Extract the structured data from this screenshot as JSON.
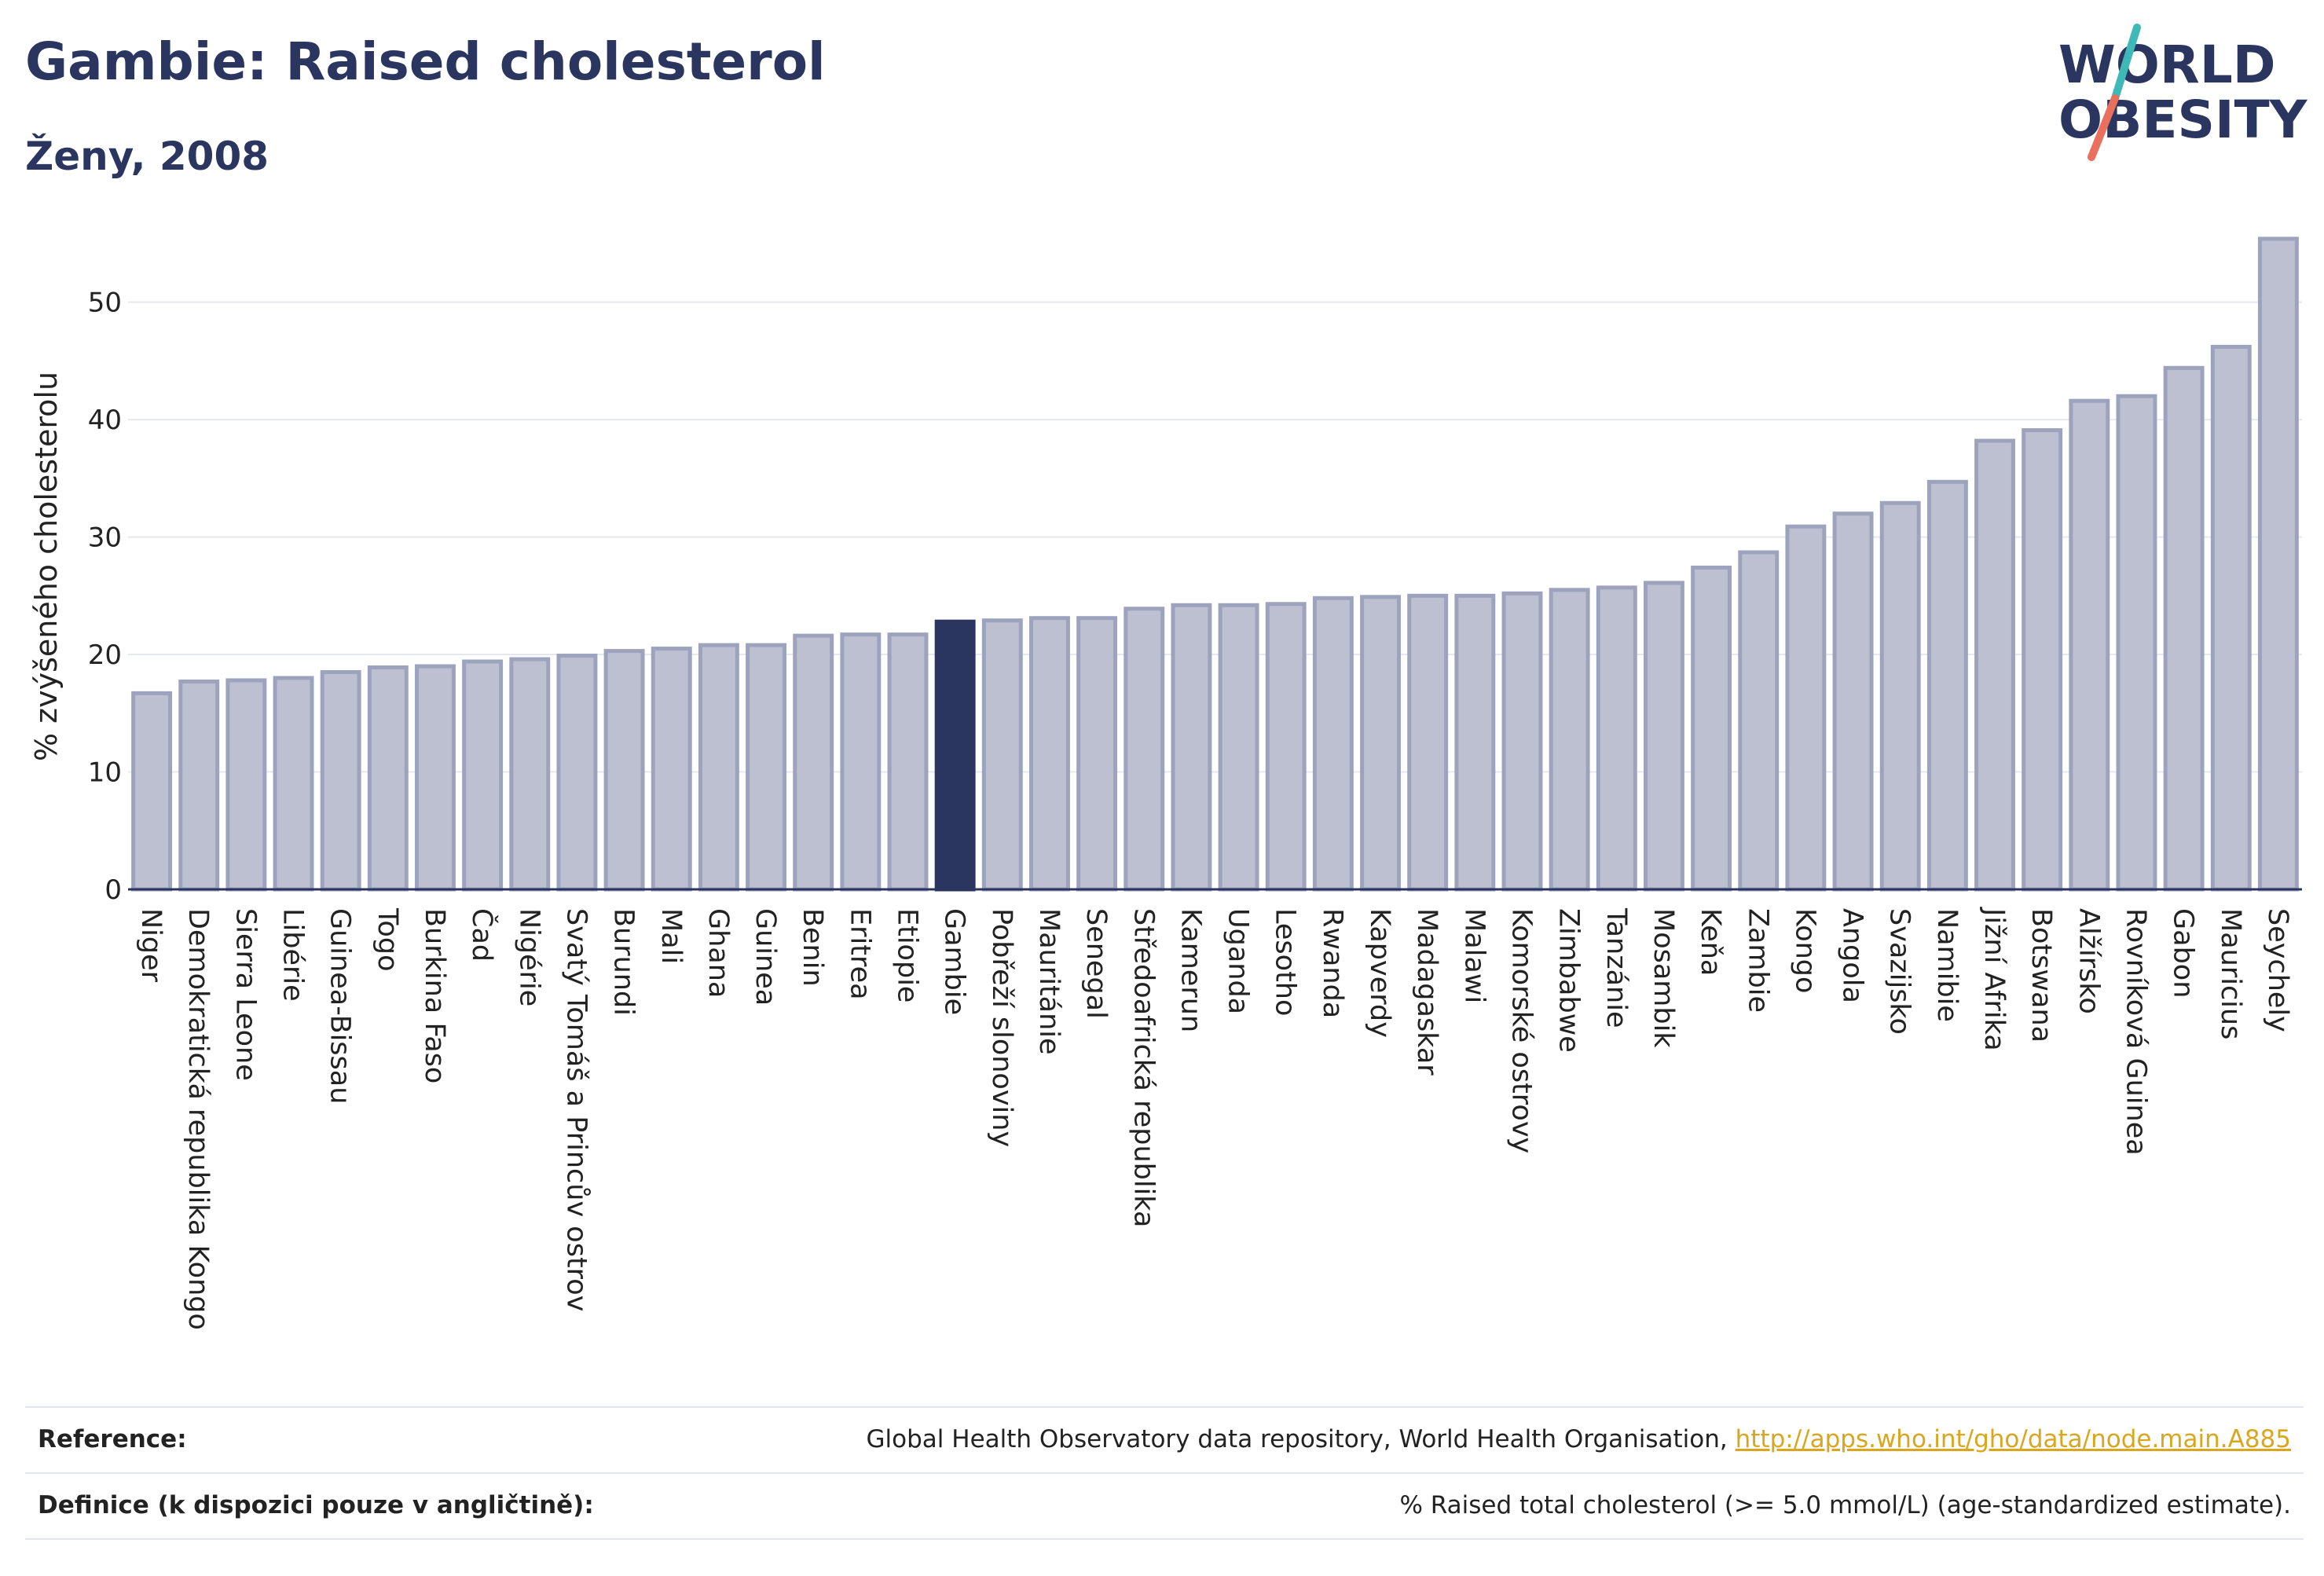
{
  "header": {
    "title": "Gambie: Raised cholesterol",
    "subtitle": "Ženy, 2008"
  },
  "logo": {
    "line1": "WORLD",
    "line2": "OBESITY",
    "colors": {
      "text": "#2a3560",
      "slash_teal": "#3fb9b7",
      "slash_coral": "#e8705d"
    }
  },
  "chart_data": {
    "type": "bar",
    "ylabel": "% zvýšeného cholesterolu",
    "ylim": [
      0,
      57
    ],
    "yticks": [
      0,
      10,
      20,
      30,
      40,
      50
    ],
    "grid": true,
    "highlight": "Gambie",
    "colors": {
      "bar": "#bcc0d0",
      "bar_border": "#9da3bd",
      "highlight": "#2a3560",
      "grid": "#e6e8ef",
      "axis": "#2a3560"
    },
    "categories": [
      "Niger",
      "Demokratická republika Kongo",
      "Sierra Leone",
      "Libérie",
      "Guinea-Bissau",
      "Togo",
      "Burkina Faso",
      "Čad",
      "Nigérie",
      "Svatý Tomáš a Princův ostrov",
      "Burundi",
      "Mali",
      "Ghana",
      "Guinea",
      "Benin",
      "Eritrea",
      "Etiopie",
      "Gambie",
      "Pobřeží slonoviny",
      "Mauritánie",
      "Senegal",
      "Středoafrická republika",
      "Kamerun",
      "Uganda",
      "Lesotho",
      "Rwanda",
      "Kapverdy",
      "Madagaskar",
      "Malawi",
      "Komorské ostrovy",
      "Zimbabwe",
      "Tanzánie",
      "Mosambik",
      "Keňa",
      "Zambie",
      "Kongo",
      "Angola",
      "Svazijsko",
      "Namibie",
      "Jižní Afrika",
      "Botswana",
      "Alžírsko",
      "Rovníková Guinea",
      "Gabon",
      "Mauricius",
      "Seychely"
    ],
    "values": [
      16.7,
      17.7,
      17.8,
      18.0,
      18.5,
      18.9,
      19.0,
      19.4,
      19.6,
      19.9,
      20.3,
      20.5,
      20.8,
      20.8,
      21.6,
      21.7,
      21.7,
      22.8,
      22.9,
      23.1,
      23.1,
      23.9,
      24.2,
      24.2,
      24.3,
      24.8,
      24.9,
      25.0,
      25.0,
      25.2,
      25.5,
      25.7,
      26.1,
      27.4,
      28.7,
      30.9,
      32.0,
      32.9,
      34.7,
      38.2,
      39.1,
      41.6,
      42.0,
      44.4,
      46.2,
      55.4
    ]
  },
  "reference": {
    "rows": [
      {
        "label": "Reference:",
        "text": "Global Health Observatory data repository, World Health Organisation, ",
        "link": "http://apps.who.int/gho/data/node.main.A885"
      },
      {
        "label": "Definice (k dispozici pouze v angličtině):",
        "text": "% Raised total cholesterol (>= 5.0 mmol/L) (age-standardized estimate).",
        "link": ""
      }
    ]
  }
}
